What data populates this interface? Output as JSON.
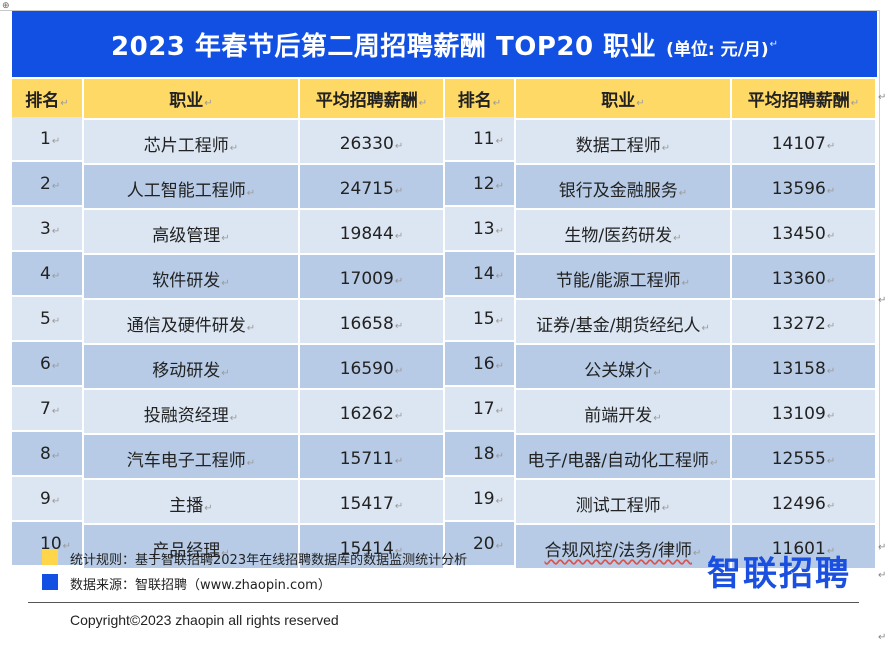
{
  "title": {
    "main": "2023 年春节后第二周招聘薪酬 TOP20 职业",
    "unit": "(单位: 元/月)"
  },
  "table": {
    "headers": [
      "排名",
      "职业",
      "平均招聘薪酬",
      "排名",
      "职业",
      "平均招聘薪酬"
    ],
    "rows": [
      {
        "r1": "1",
        "j1": "芯片工程师",
        "s1": "26330",
        "r2": "11",
        "j2": "数据工程师",
        "s2": "14107"
      },
      {
        "r1": "2",
        "j1": "人工智能工程师",
        "s1": "24715",
        "r2": "12",
        "j2": "银行及金融服务",
        "s2": "13596"
      },
      {
        "r1": "3",
        "j1": "高级管理",
        "s1": "19844",
        "r2": "13",
        "j2": "生物/医药研发",
        "s2": "13450"
      },
      {
        "r1": "4",
        "j1": "软件研发",
        "s1": "17009",
        "r2": "14",
        "j2": "节能/能源工程师",
        "s2": "13360"
      },
      {
        "r1": "5",
        "j1": "通信及硬件研发",
        "s1": "16658",
        "r2": "15",
        "j2": "证券/基金/期货经纪人",
        "s2": "13272"
      },
      {
        "r1": "6",
        "j1": "移动研发",
        "s1": "16590",
        "r2": "16",
        "j2": "公关媒介",
        "s2": "13158"
      },
      {
        "r1": "7",
        "j1": "投融资经理",
        "s1": "16262",
        "r2": "17",
        "j2": "前端开发",
        "s2": "13109"
      },
      {
        "r1": "8",
        "j1": "汽车电子工程师",
        "s1": "15711",
        "r2": "18",
        "j2": "电子/电器/自动化工程师",
        "s2": "12555"
      },
      {
        "r1": "9",
        "j1": "主播",
        "s1": "15417",
        "r2": "19",
        "j2": "测试工程师",
        "s2": "12496"
      },
      {
        "r1": "10",
        "j1": "产品经理",
        "s1": "15414",
        "r2": "20",
        "j2": "合规风控/法务/律师",
        "s2": "11601"
      }
    ]
  },
  "legend": {
    "rule": "统计规则：基于智联招聘2023年在线招聘数据库的数据监测统计分析",
    "source": "数据来源：智联招聘（www.zhaopin.com）"
  },
  "brand": "智联招聘",
  "copyright": "Copyright©2023 zhaopin all rights reserved",
  "colors": {
    "title_bg": "#1250e3",
    "header_bg": "#ffd966",
    "row_light": "#dce6f2",
    "row_dark": "#b7cbe6",
    "legend_yellow": "#ffd54a",
    "legend_blue": "#1250e3",
    "brand": "#1a4fe0"
  },
  "icons": {
    "paragraph_mark": "↵",
    "move_handle": "⊕"
  }
}
